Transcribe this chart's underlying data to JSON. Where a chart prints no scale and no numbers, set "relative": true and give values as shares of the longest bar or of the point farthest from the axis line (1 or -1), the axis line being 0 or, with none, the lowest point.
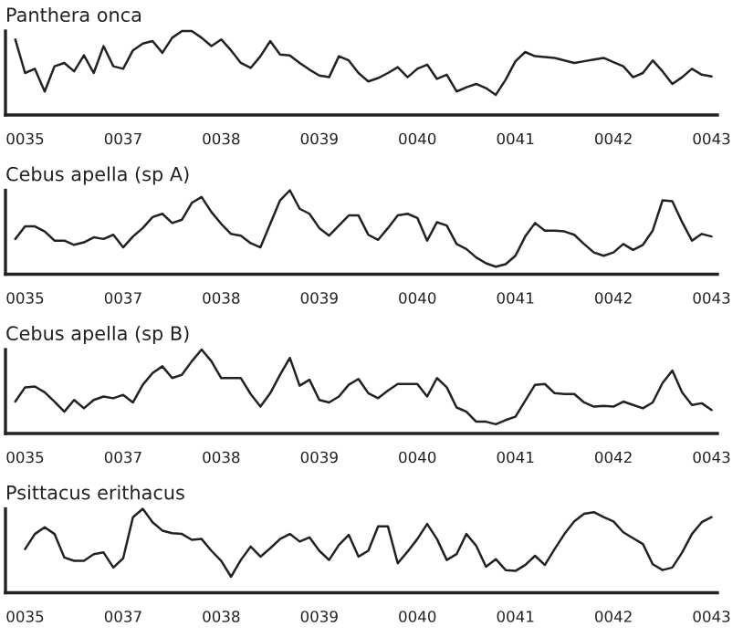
{
  "chart_data": [
    {
      "type": "line",
      "title": "Panthera onca",
      "relative": true,
      "categories": [
        null,
        "0035",
        null,
        null,
        null,
        null,
        null,
        null,
        null,
        null,
        null,
        "0037",
        null,
        null,
        null,
        null,
        null,
        null,
        null,
        null,
        null,
        "0038",
        null,
        null,
        null,
        null,
        null,
        null,
        null,
        null,
        null,
        "0039",
        null,
        null,
        null,
        null,
        null,
        null,
        null,
        null,
        null,
        "0040",
        null,
        null,
        null,
        null,
        null,
        null,
        null,
        null,
        null,
        "0041",
        null,
        null,
        null,
        null,
        null,
        null,
        null,
        null,
        null,
        "0042",
        null,
        null,
        null,
        null,
        null,
        null,
        null,
        null,
        null,
        "0043"
      ],
      "series": [
        {
          "color": "#222222",
          "values": [
            0.9,
            0.5,
            0.55,
            0.28,
            0.58,
            0.62,
            0.52,
            0.71,
            0.5,
            0.82,
            0.58,
            0.55,
            0.77,
            0.85,
            0.88,
            0.74,
            0.92,
            1.0,
            1.0,
            0.92,
            0.82,
            0.9,
            0.77,
            0.62,
            0.56,
            0.7,
            0.88,
            0.72,
            0.71,
            0.62,
            0.54,
            0.47,
            0.45,
            0.7,
            0.65,
            0.5,
            0.4,
            0.44,
            0.5,
            0.57,
            0.45,
            0.55,
            0.6,
            0.43,
            0.48,
            0.28,
            0.33,
            0.37,
            0.32,
            0.24,
            0.42,
            0.64,
            0.75,
            0.7,
            0.69,
            0.68,
            0.65,
            0.62,
            0.64,
            0.66,
            0.68,
            0.63,
            0.58,
            0.45,
            0.5,
            0.65,
            0.52,
            0.37,
            0.45,
            0.55,
            0.48,
            0.46
          ]
        }
      ]
    },
    {
      "type": "line",
      "title": "Cebus apella (sp A)",
      "relative": true,
      "categories": [
        null,
        "0035",
        null,
        null,
        null,
        null,
        null,
        null,
        null,
        null,
        null,
        "0037",
        null,
        null,
        null,
        null,
        null,
        null,
        null,
        null,
        null,
        "0038",
        null,
        null,
        null,
        null,
        null,
        null,
        null,
        null,
        null,
        "0039",
        null,
        null,
        null,
        null,
        null,
        null,
        null,
        null,
        null,
        "0040",
        null,
        null,
        null,
        null,
        null,
        null,
        null,
        null,
        null,
        "0041",
        null,
        null,
        null,
        null,
        null,
        null,
        null,
        null,
        null,
        "0042",
        null,
        null,
        null,
        null,
        null,
        null,
        null,
        null,
        null,
        "0043"
      ],
      "series": [
        {
          "color": "#222222",
          "values": [
            0.42,
            0.57,
            0.57,
            0.51,
            0.4,
            0.4,
            0.35,
            0.38,
            0.44,
            0.42,
            0.47,
            0.32,
            0.45,
            0.55,
            0.68,
            0.72,
            0.61,
            0.65,
            0.85,
            0.92,
            0.74,
            0.6,
            0.48,
            0.46,
            0.37,
            0.32,
            0.6,
            0.88,
            1.0,
            0.78,
            0.72,
            0.55,
            0.46,
            0.58,
            0.7,
            0.7,
            0.47,
            0.41,
            0.55,
            0.7,
            0.72,
            0.67,
            0.4,
            0.62,
            0.58,
            0.36,
            0.3,
            0.2,
            0.13,
            0.09,
            0.12,
            0.22,
            0.45,
            0.61,
            0.52,
            0.52,
            0.51,
            0.47,
            0.36,
            0.26,
            0.22,
            0.26,
            0.36,
            0.29,
            0.35,
            0.52,
            0.88,
            0.87,
            0.62,
            0.4,
            0.48,
            0.45
          ]
        }
      ]
    },
    {
      "type": "line",
      "title": "Cebus apella (sp B)",
      "relative": true,
      "categories": [
        null,
        "0035",
        null,
        null,
        null,
        null,
        null,
        null,
        null,
        null,
        null,
        "0037",
        null,
        null,
        null,
        null,
        null,
        null,
        null,
        null,
        null,
        "0038",
        null,
        null,
        null,
        null,
        null,
        null,
        null,
        null,
        null,
        "0039",
        null,
        null,
        null,
        null,
        null,
        null,
        null,
        null,
        null,
        "0040",
        null,
        null,
        null,
        null,
        null,
        null,
        null,
        null,
        null,
        "0041",
        null,
        null,
        null,
        null,
        null,
        null,
        null,
        null,
        null,
        "0042",
        null,
        null,
        null,
        null,
        null,
        null,
        null,
        null,
        null,
        "0043"
      ],
      "series": [
        {
          "color": "#222222",
          "values": [
            0.38,
            0.55,
            0.56,
            0.49,
            0.38,
            0.26,
            0.4,
            0.3,
            0.4,
            0.44,
            0.42,
            0.46,
            0.37,
            0.58,
            0.72,
            0.8,
            0.66,
            0.7,
            0.86,
            1.0,
            0.86,
            0.66,
            0.66,
            0.66,
            0.47,
            0.32,
            0.48,
            0.7,
            0.9,
            0.57,
            0.64,
            0.4,
            0.37,
            0.44,
            0.58,
            0.65,
            0.48,
            0.42,
            0.51,
            0.59,
            0.59,
            0.59,
            0.44,
            0.66,
            0.55,
            0.31,
            0.26,
            0.14,
            0.14,
            0.11,
            0.16,
            0.2,
            0.39,
            0.58,
            0.59,
            0.48,
            0.47,
            0.47,
            0.37,
            0.32,
            0.33,
            0.32,
            0.38,
            0.34,
            0.3,
            0.37,
            0.6,
            0.75,
            0.49,
            0.34,
            0.36,
            0.28
          ]
        }
      ]
    },
    {
      "type": "line",
      "title": "Psittacus erithacus",
      "relative": true,
      "categories": [
        null,
        "0035",
        null,
        null,
        null,
        null,
        null,
        null,
        null,
        null,
        null,
        "0037",
        null,
        null,
        null,
        null,
        null,
        null,
        null,
        null,
        null,
        "0038",
        null,
        null,
        null,
        null,
        null,
        null,
        null,
        null,
        null,
        "0039",
        null,
        null,
        null,
        null,
        null,
        null,
        null,
        null,
        null,
        "0040",
        null,
        null,
        null,
        null,
        null,
        null,
        null,
        null,
        null,
        "0041",
        null,
        null,
        null,
        null,
        null,
        null,
        null,
        null,
        null,
        "0042",
        null,
        null,
        null,
        null,
        null,
        null,
        null,
        null,
        null,
        "0043"
      ],
      "series": [
        {
          "color": "#222222",
          "values": [
            null,
            0.52,
            0.7,
            0.78,
            0.7,
            0.42,
            0.38,
            0.38,
            0.46,
            0.48,
            0.3,
            0.41,
            0.9,
            1.0,
            0.84,
            0.74,
            0.71,
            0.7,
            0.63,
            0.64,
            0.5,
            0.38,
            0.19,
            0.39,
            0.55,
            0.43,
            0.53,
            0.64,
            0.7,
            0.61,
            0.66,
            0.5,
            0.39,
            0.57,
            0.69,
            0.43,
            0.5,
            0.79,
            0.79,
            0.35,
            0.49,
            0.64,
            0.82,
            0.64,
            0.39,
            0.46,
            0.7,
            0.56,
            0.31,
            0.4,
            0.27,
            0.26,
            0.33,
            0.44,
            0.33,
            0.52,
            0.7,
            0.85,
            0.94,
            0.96,
            0.9,
            0.85,
            0.72,
            0.65,
            0.58,
            0.34,
            0.27,
            0.3,
            0.48,
            0.7,
            0.84,
            0.9
          ]
        }
      ]
    }
  ]
}
